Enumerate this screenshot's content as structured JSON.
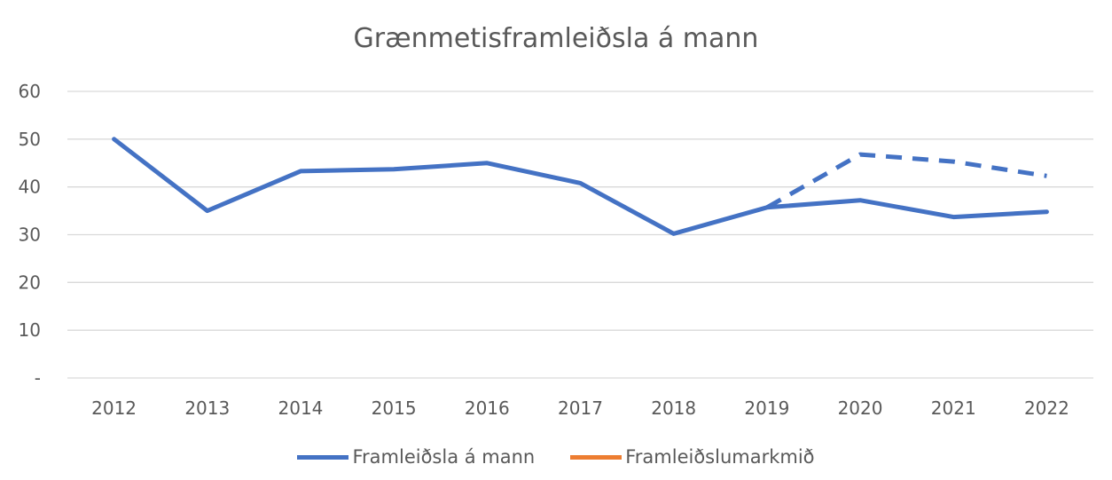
{
  "chart_data": {
    "type": "line",
    "title": "Grænmetisframleiðsla á mann",
    "xlabel": "",
    "ylabel": "",
    "ylim": [
      0,
      60
    ],
    "y_ticks": [
      {
        "value": 0,
        "label": "-"
      },
      {
        "value": 10,
        "label": "10"
      },
      {
        "value": 20,
        "label": "20"
      },
      {
        "value": 30,
        "label": "30"
      },
      {
        "value": 40,
        "label": "40"
      },
      {
        "value": 50,
        "label": "50"
      },
      {
        "value": 60,
        "label": "60"
      }
    ],
    "grid": true,
    "legend_position": "bottom",
    "categories": [
      "2012",
      "2013",
      "2014",
      "2015",
      "2016",
      "2017",
      "2018",
      "2019",
      "2020",
      "2021",
      "2022"
    ],
    "series": [
      {
        "name": "Framleiðsla á mann",
        "color": "#4472C4",
        "style": "solid",
        "values": [
          50.0,
          35.0,
          43.3,
          43.7,
          45.0,
          40.8,
          30.2,
          35.7,
          37.2,
          33.7,
          34.8
        ]
      },
      {
        "name": "Framleiðslumarkmið",
        "color": "#ED7D31",
        "style": "solid",
        "values": [
          null,
          null,
          null,
          null,
          null,
          null,
          null,
          null,
          null,
          null,
          null
        ]
      },
      {
        "name": "",
        "color": "#4472C4",
        "style": "dashed",
        "values": [
          null,
          null,
          null,
          null,
          null,
          null,
          null,
          35.7,
          46.8,
          45.3,
          42.3
        ]
      }
    ]
  }
}
